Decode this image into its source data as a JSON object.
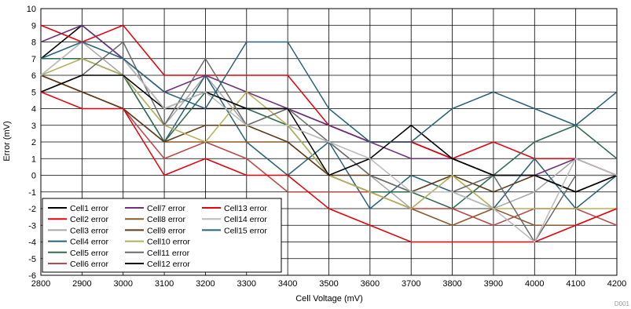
{
  "chart_data": {
    "type": "line",
    "xlabel": "Cell Voltage (mV)",
    "ylabel": "Error (mV)",
    "xlim": [
      2800,
      4200
    ],
    "ylim": [
      -6,
      10
    ],
    "grid": true,
    "legend_placement": "bottom-left",
    "figure_id": "D001",
    "x": [
      2800,
      2900,
      3000,
      3100,
      3200,
      3300,
      3400,
      3500,
      3600,
      3700,
      3800,
      3900,
      4000,
      4100,
      4200
    ],
    "series": [
      {
        "name": "Cell1 error",
        "color": "#000000",
        "values": [
          7,
          9,
          7,
          4,
          4,
          4,
          4,
          3,
          2,
          2,
          1,
          0,
          0,
          -1,
          0
        ]
      },
      {
        "name": "Cell2 error",
        "color": "#e8000a",
        "values": [
          9,
          8,
          9,
          6,
          6,
          6,
          6,
          3,
          2,
          2,
          1,
          2,
          1,
          1,
          0
        ]
      },
      {
        "name": "Cell3 error",
        "color": "#a8a8a8",
        "values": [
          6,
          8,
          6,
          3,
          6,
          3,
          3,
          2,
          0,
          -2,
          0,
          -2,
          -1,
          1,
          0
        ]
      },
      {
        "name": "Cell4 error",
        "color": "#2a6279",
        "values": [
          7,
          7,
          6,
          2,
          6,
          2,
          0,
          2,
          -2,
          0,
          -1,
          -2,
          1,
          -2,
          0
        ]
      },
      {
        "name": "Cell5 error",
        "color": "#2e6b4f",
        "values": [
          7,
          7,
          6,
          2,
          5,
          4,
          3,
          0,
          -1,
          -1,
          -2,
          0,
          2,
          3,
          1
        ]
      },
      {
        "name": "Cell6 error",
        "color": "#b9474a",
        "values": [
          6,
          5,
          4,
          1,
          2,
          1,
          -1,
          -1,
          -1,
          -2,
          -2,
          -3,
          -2,
          -2,
          -3
        ]
      },
      {
        "name": "Cell7 error",
        "color": "#6e2f7e",
        "values": [
          8,
          9,
          7,
          5,
          6,
          5,
          4,
          3,
          2,
          1,
          1,
          0,
          0,
          1,
          0
        ]
      },
      {
        "name": "Cell8 error",
        "color": "#8b5a2b",
        "values": [
          6,
          5,
          4,
          2,
          2,
          2,
          2,
          0,
          -1,
          -2,
          -3,
          -2,
          -3,
          -3,
          -2
        ]
      },
      {
        "name": "Cell9 error",
        "color": "#5c3a1a",
        "values": [
          6,
          5,
          4,
          2,
          3,
          3,
          2,
          0,
          0,
          -1,
          0,
          -1,
          0,
          -1,
          0
        ]
      },
      {
        "name": "Cell10 error",
        "color": "#b5b05a",
        "values": [
          6,
          7,
          6,
          3,
          2,
          5,
          3,
          0,
          -1,
          -2,
          0,
          -2,
          -2,
          -2,
          -2
        ]
      },
      {
        "name": "Cell11 error",
        "color": "#6b6b6b",
        "values": [
          5,
          6,
          8,
          3,
          7,
          3,
          4,
          2,
          0,
          -1,
          -1,
          0,
          -4,
          0,
          0
        ]
      },
      {
        "name": "Cell12 error",
        "color": "#000000",
        "values": [
          5,
          6,
          6,
          4,
          5,
          4,
          4,
          0,
          1,
          3,
          1,
          0,
          0,
          -1,
          0
        ]
      },
      {
        "name": "Cell13 error",
        "color": "#e8000a",
        "values": [
          5,
          4,
          4,
          0,
          1,
          0,
          0,
          -2,
          -3,
          -4,
          -4,
          -4,
          -4,
          -3,
          -2
        ]
      },
      {
        "name": "Cell14 error",
        "color": "#bbbbbb",
        "values": [
          6,
          8,
          7,
          4,
          5,
          3,
          3,
          2,
          1,
          -1,
          -1,
          -2,
          -4,
          1,
          0
        ]
      },
      {
        "name": "Cell15 error",
        "color": "#2a6279",
        "values": [
          7,
          8,
          7,
          5,
          4,
          8,
          8,
          4,
          2,
          2,
          4,
          5,
          4,
          3,
          5
        ]
      }
    ]
  }
}
